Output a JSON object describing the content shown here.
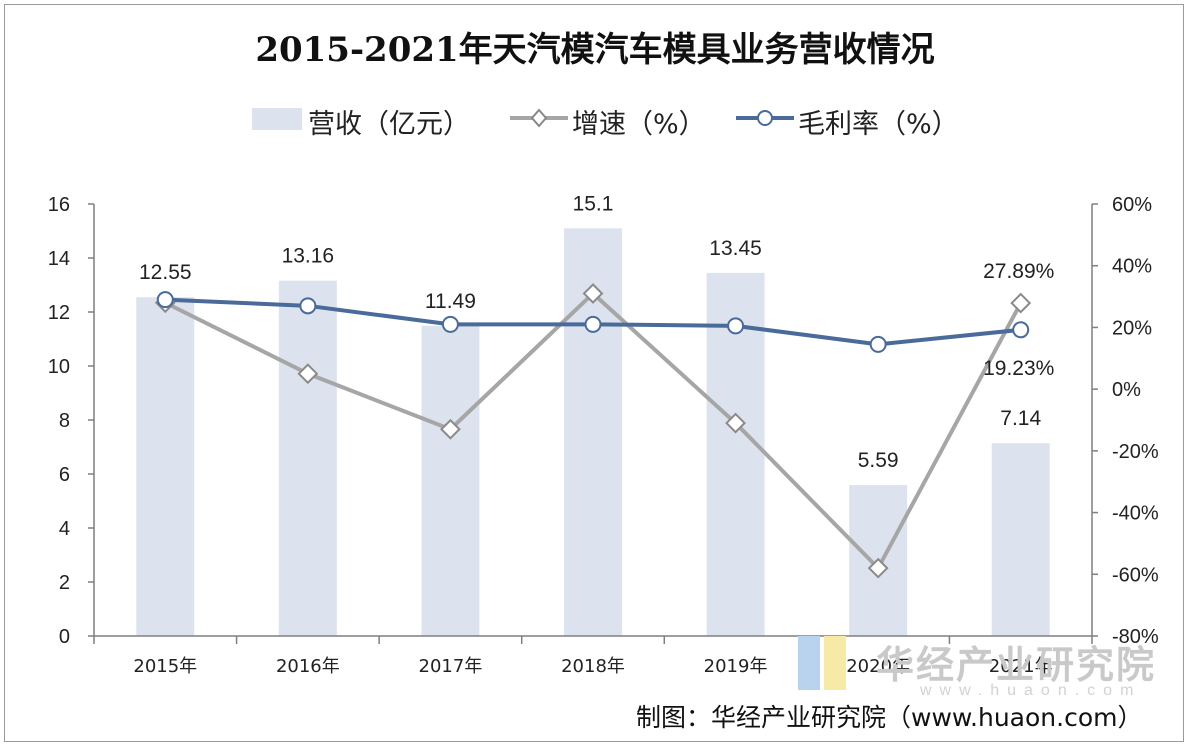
{
  "chart_data": {
    "type": "bar",
    "title": "2015-2021年天汽模汽车模具业务营收情况",
    "categories": [
      "2015年",
      "2016年",
      "2017年",
      "2018年",
      "2019年",
      "2020年",
      "2021年"
    ],
    "series": [
      {
        "name": "营收（亿元）",
        "type": "bar",
        "axis": "left",
        "values": [
          12.55,
          13.16,
          11.49,
          15.1,
          13.45,
          5.59,
          7.14
        ],
        "labels": [
          "12.55",
          "13.16",
          "11.49",
          "15.1",
          "13.45",
          "5.59",
          "7.14"
        ]
      },
      {
        "name": "增速（%）",
        "type": "line",
        "axis": "right",
        "marker": "diamond",
        "values": [
          28,
          5,
          -13,
          31,
          -11,
          -58,
          27.89
        ],
        "labels": [
          "",
          "",
          "",
          "",
          "",
          "",
          "27.89%"
        ]
      },
      {
        "name": "毛利率（%）",
        "type": "line",
        "axis": "right",
        "marker": "circle",
        "values": [
          29,
          27,
          21,
          21,
          20.5,
          14.5,
          19.23
        ],
        "labels": [
          "",
          "",
          "",
          "",
          "",
          "",
          "19.23%"
        ]
      }
    ],
    "y_left": {
      "min": 0,
      "max": 16,
      "ticks": [
        "0",
        "2",
        "4",
        "6",
        "8",
        "10",
        "12",
        "14",
        "16"
      ]
    },
    "y_right": {
      "min": -80,
      "max": 60,
      "ticks": [
        "-80%",
        "-60%",
        "-40%",
        "-20%",
        "0%",
        "20%",
        "40%",
        "60%"
      ]
    },
    "grid": false,
    "legend_position": "top",
    "colors": {
      "bar": "#dde3ee",
      "growth": "#a6a6a6",
      "margin": "#4a6a9a"
    }
  },
  "watermark": {
    "text": "华经产业研究院",
    "url": "www.huaon.com"
  },
  "source": "制图：华经产业研究院（www.huaon.com）"
}
